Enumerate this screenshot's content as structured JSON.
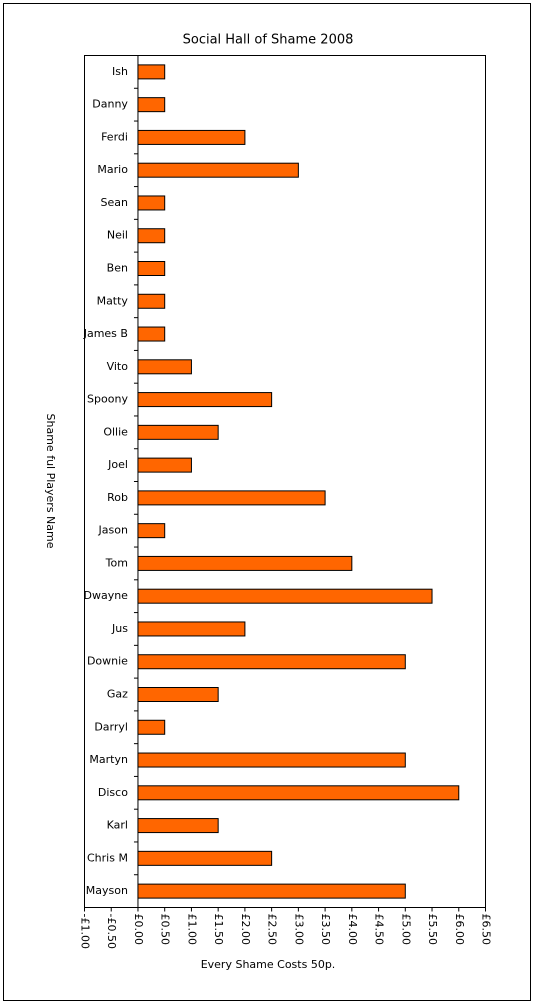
{
  "chart_data": {
    "type": "bar",
    "orientation": "horizontal",
    "title": "Social Hall of Shame 2008",
    "x_label": "Every Shame Costs 50p.",
    "y_label": "Shame ful Players Name",
    "categories": [
      "Ish",
      "Danny",
      "Ferdi",
      "Mario",
      "Sean",
      "Neil",
      "Ben",
      "Matty",
      "James B",
      "Vito",
      "Spoony",
      "Ollie",
      "Joel",
      "Rob",
      "Jason",
      "Tom",
      "Dwayne",
      "Jus",
      "Downie",
      "Gaz",
      "Darryl",
      "Martyn",
      "Disco",
      "Karl",
      "Chris M",
      "Mayson"
    ],
    "values": [
      0.5,
      0.5,
      2.0,
      3.0,
      0.5,
      0.5,
      0.5,
      0.5,
      0.5,
      1.0,
      2.5,
      1.5,
      1.0,
      3.5,
      0.5,
      4.0,
      5.5,
      2.0,
      5.0,
      1.5,
      0.5,
      5.0,
      6.0,
      1.5,
      2.5,
      5.0
    ],
    "color": "#ff6600",
    "xlim": [
      -1,
      6.5
    ],
    "xticks": [
      {
        "value": -1,
        "label": "-£1.00"
      },
      {
        "value": -0.5,
        "label": "-£0.50"
      },
      {
        "value": 0,
        "label": "£0.00"
      },
      {
        "value": 0.5,
        "label": "£0.50"
      },
      {
        "value": 1,
        "label": "£1.00"
      },
      {
        "value": 1.5,
        "label": "£1.50"
      },
      {
        "value": 2,
        "label": "£2.00"
      },
      {
        "value": 2.5,
        "label": "£2.50"
      },
      {
        "value": 3,
        "label": "£3.00"
      },
      {
        "value": 3.5,
        "label": "£3.50"
      },
      {
        "value": 4,
        "label": "£4.00"
      },
      {
        "value": 4.5,
        "label": "£4.50"
      },
      {
        "value": 5,
        "label": "£5.00"
      },
      {
        "value": 5.5,
        "label": "£5.50"
      },
      {
        "value": 6,
        "label": "£6.00"
      },
      {
        "value": 6.5,
        "label": "£6.50"
      }
    ],
    "grid": false
  }
}
